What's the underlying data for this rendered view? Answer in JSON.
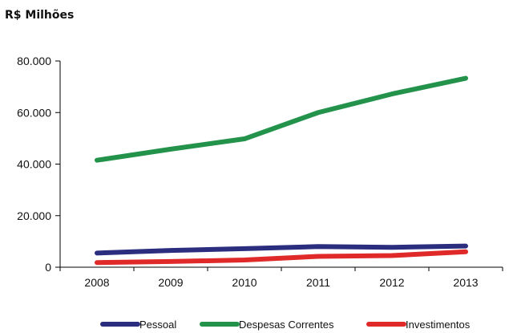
{
  "chart_data": {
    "type": "line",
    "title": "R$ Milhões",
    "xlabel": "",
    "ylabel": "",
    "x": [
      "2008",
      "2009",
      "2010",
      "2011",
      "2012",
      "2013"
    ],
    "ylim": [
      0,
      80000
    ],
    "yticks": [
      0,
      20000,
      40000,
      60000,
      80000
    ],
    "ytick_labels": [
      "0",
      "20.000",
      "40.000",
      "60.000",
      "80.000"
    ],
    "grid": false,
    "legend_position": "bottom",
    "series": [
      {
        "name": "Pessoal",
        "color": "#2b2d7e",
        "values": [
          5500,
          6500,
          7200,
          8000,
          7700,
          8200
        ]
      },
      {
        "name": "Despesas Correntes",
        "color": "#23924a",
        "values": [
          41500,
          45800,
          49800,
          60000,
          67200,
          73300
        ]
      },
      {
        "name": "Investimentos",
        "color": "#e02a2a",
        "values": [
          1800,
          2200,
          2800,
          4200,
          4500,
          6000
        ]
      }
    ]
  }
}
